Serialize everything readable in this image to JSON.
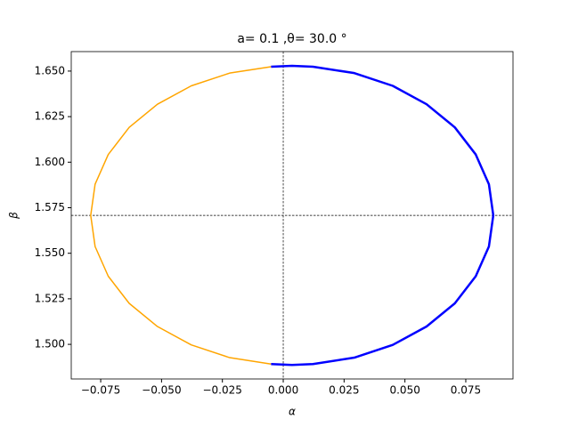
{
  "chart_data": {
    "type": "line",
    "title": "a= 0.1 ,θ= 30.0 °",
    "x_label": "α",
    "y_label": "β",
    "series": [
      {
        "color": "#ffa500",
        "x": [
          -0.005,
          -0.022,
          -0.0378,
          -0.0517,
          -0.0633,
          -0.0719,
          -0.0773,
          -0.0791,
          -0.0773,
          -0.0719,
          -0.0633,
          -0.0517,
          -0.0378,
          -0.022,
          -0.005
        ],
        "values": [
          1.6524,
          1.6489,
          1.6419,
          1.6318,
          1.6191,
          1.6042,
          1.5879,
          1.5708,
          1.5537,
          1.5374,
          1.5225,
          1.5098,
          1.4997,
          1.4927,
          1.4892
        ]
      },
      {
        "color": "#0000ff",
        "x": [
          -0.005,
          0.0036,
          0.0122,
          0.0292,
          0.045,
          0.0589,
          0.0705,
          0.0791,
          0.0845,
          0.0863,
          0.0845,
          0.0791,
          0.0705,
          0.0589,
          0.045,
          0.0292,
          0.0122,
          0.0036,
          -0.005
        ],
        "values": [
          1.6524,
          1.6529,
          1.6524,
          1.6489,
          1.6419,
          1.6318,
          1.6191,
          1.6042,
          1.5879,
          1.5708,
          1.5537,
          1.5374,
          1.5225,
          1.5098,
          1.4997,
          1.4927,
          1.4892,
          1.4887,
          1.4892
        ]
      }
    ],
    "reference_lines": {
      "x": 0,
      "y": 1.5708
    },
    "xlim": [
      -0.0871,
      0.0944
    ],
    "ylim": [
      1.481,
      1.6607
    ],
    "xticks": [
      {
        "value": -0.075,
        "label": "−0.075"
      },
      {
        "value": -0.05,
        "label": "−0.050"
      },
      {
        "value": -0.025,
        "label": "−0.025"
      },
      {
        "value": 0,
        "label": "0.000"
      },
      {
        "value": 0.025,
        "label": "0.025"
      },
      {
        "value": 0.05,
        "label": "0.050"
      },
      {
        "value": 0.075,
        "label": "0.075"
      }
    ],
    "yticks": [
      {
        "value": 1.5,
        "label": "1.500"
      },
      {
        "value": 1.525,
        "label": "1.525"
      },
      {
        "value": 1.55,
        "label": "1.550"
      },
      {
        "value": 1.575,
        "label": "1.575"
      },
      {
        "value": 1.6,
        "label": "1.600"
      },
      {
        "value": 1.625,
        "label": "1.625"
      },
      {
        "value": 1.65,
        "label": "1.650"
      }
    ]
  }
}
